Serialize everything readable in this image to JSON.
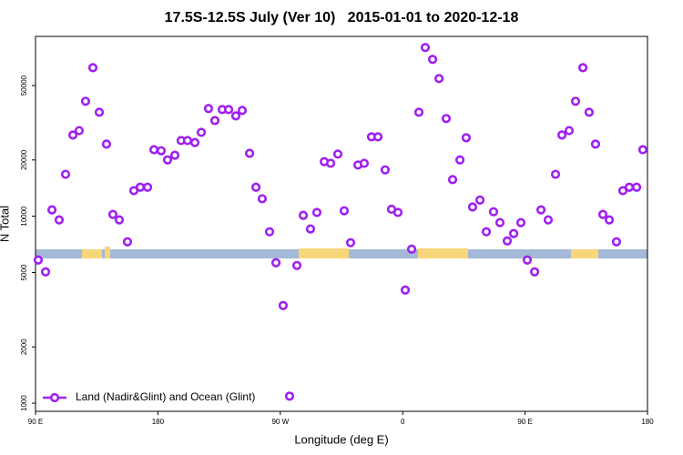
{
  "chart_data": {
    "type": "scatter",
    "title": "17.5S-12.5S July (Ver 10)   2015-01-01 to 2020-12-18",
    "x_label": "Longitude (deg E)",
    "y_label": "N Total",
    "yscale": "log",
    "legend": "bottom-left",
    "xlim": [
      90,
      540
    ],
    "xticks": [
      {
        "value": 90,
        "label": "90 E"
      },
      180,
      {
        "value": 270,
        "label": "90 W"
      },
      {
        "value": 360,
        "label": "0"
      },
      {
        "value": 450,
        "label": "90 E"
      },
      {
        "value": 540,
        "label": "180"
      }
    ],
    "ylim": [
      905,
      91600
    ],
    "yticks": [
      1000,
      2000,
      5000,
      10000,
      20000,
      50000
    ],
    "series": [
      {
        "name": "Land (Nadir&Glint) and Ocean (Glint)",
        "color": "#a020f0",
        "x": [
          92,
          97.4,
          102.1,
          107.4,
          112.1,
          117.5,
          122.1,
          126.8,
          132.2,
          136.9,
          142.2,
          146.9,
          151.6,
          157.6,
          162.3,
          167.0,
          172.4,
          177.1,
          182.4,
          187.1,
          192.5,
          197.1,
          201.8,
          207.2,
          211.9,
          217.2,
          221.9,
          227.3,
          232.0,
          237.3,
          242.0,
          247.4,
          252.1,
          256.7,
          262.1,
          266.8,
          272.1,
          276.8,
          282.2,
          286.9,
          292.2,
          296.9,
          302.3,
          307.0,
          312.3,
          317.0,
          321.7,
          327.1,
          331.7,
          337.1,
          341.8,
          347.1,
          351.8,
          356.5,
          361.9,
          366.6,
          371.9,
          376.6,
          382.0,
          386.7,
          392.0,
          396.7,
          402.1,
          406.7,
          411.4,
          416.8,
          421.5,
          426.8,
          431.5,
          436.9,
          441.6,
          446.9,
          451.6,
          457.0,
          461.7,
          467.0,
          472.4,
          477.1,
          482.4,
          487.1,
          492.5,
          497.1,
          501.8,
          507.2,
          511.9,
          517.2,
          521.9,
          526.6,
          532.0,
          536.6
        ],
        "values": [
          5830,
          5040,
          10820,
          9560,
          16760,
          27200,
          28700,
          41200,
          62300,
          36000,
          24300,
          10230,
          9560,
          7300,
          13700,
          14300,
          14300,
          22700,
          22400,
          20000,
          21200,
          25400,
          25400,
          24800,
          28100,
          37700,
          32500,
          37200,
          37200,
          34400,
          36800,
          21700,
          14300,
          12400,
          8260,
          5640,
          3330,
          1090,
          5450,
          10110,
          8550,
          10470,
          19600,
          19200,
          21500,
          10700,
          7220,
          18800,
          19200,
          26600,
          26600,
          17700,
          10900,
          10470,
          4030,
          6670,
          36000,
          79900,
          69000,
          54500,
          33300,
          15700,
          20000,
          26300,
          11200,
          12200,
          8260,
          10570,
          9250,
          7380,
          8080,
          9250,
          5830,
          5040,
          10820,
          9560,
          16760,
          27200,
          28700,
          41200,
          62300,
          36000,
          24300,
          10230,
          9560,
          7300,
          13700,
          14300,
          14300,
          22700
        ]
      }
    ]
  }
}
